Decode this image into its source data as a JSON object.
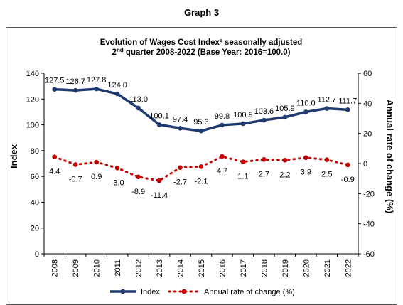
{
  "page_label": "Graph 3",
  "chart_data": {
    "type": "line",
    "title_line1": "Evolution of Wages Cost Index¹ seasonally adjusted",
    "title_line2_pre": "2",
    "title_line2_sup": "nd",
    "title_line2_post": " quarter 2008-2022 (Base Year: 2016=100.0)",
    "ylabel_left": "Index",
    "ylabel_right": "Annual rate of change (%)",
    "ylim_left": [
      0,
      140
    ],
    "ylim_right": [
      -60,
      60
    ],
    "yticks_left": [
      "0",
      "20",
      "40",
      "60",
      "80",
      "100",
      "120",
      "140"
    ],
    "yticks_right": [
      "-60",
      "-40",
      "-20",
      "0",
      "20",
      "40",
      "60"
    ],
    "categories": [
      "2008",
      "2009",
      "2010",
      "2011",
      "2012",
      "2013",
      "2014",
      "2015",
      "2016",
      "2017",
      "2018",
      "2019",
      "2020",
      "2021",
      "2022"
    ],
    "series": [
      {
        "name": "Index",
        "axis": "left",
        "color": "#1f3a6e",
        "values": [
          127.5,
          126.7,
          127.8,
          124.0,
          113.0,
          100.1,
          97.4,
          95.3,
          99.8,
          100.9,
          103.6,
          105.9,
          110.0,
          112.7,
          111.7
        ],
        "labels": [
          "127.5",
          "126.7",
          "127.8",
          "124.0",
          "113.0",
          "100.1",
          "97.4",
          "95.3",
          "99.8",
          "100.9",
          "103.6",
          "105.9",
          "110.0",
          "112.7",
          "111.7"
        ]
      },
      {
        "name": "Annual rate of change (%)",
        "axis": "right",
        "color": "#c00000",
        "values": [
          4.4,
          -0.7,
          0.9,
          -3.0,
          -8.9,
          -11.4,
          -2.7,
          -2.1,
          4.7,
          1.1,
          2.7,
          2.2,
          3.9,
          2.5,
          -0.9
        ],
        "labels": [
          "4.4",
          "-0.7",
          "0.9",
          "-3.0",
          "-8.9",
          "-11.4",
          "-2.7",
          "-2.1",
          "4.7",
          "1.1",
          "2.7",
          "2.2",
          "3.9",
          "2.5",
          "-0.9"
        ]
      }
    ],
    "legend_position": "bottom",
    "grid": false
  }
}
